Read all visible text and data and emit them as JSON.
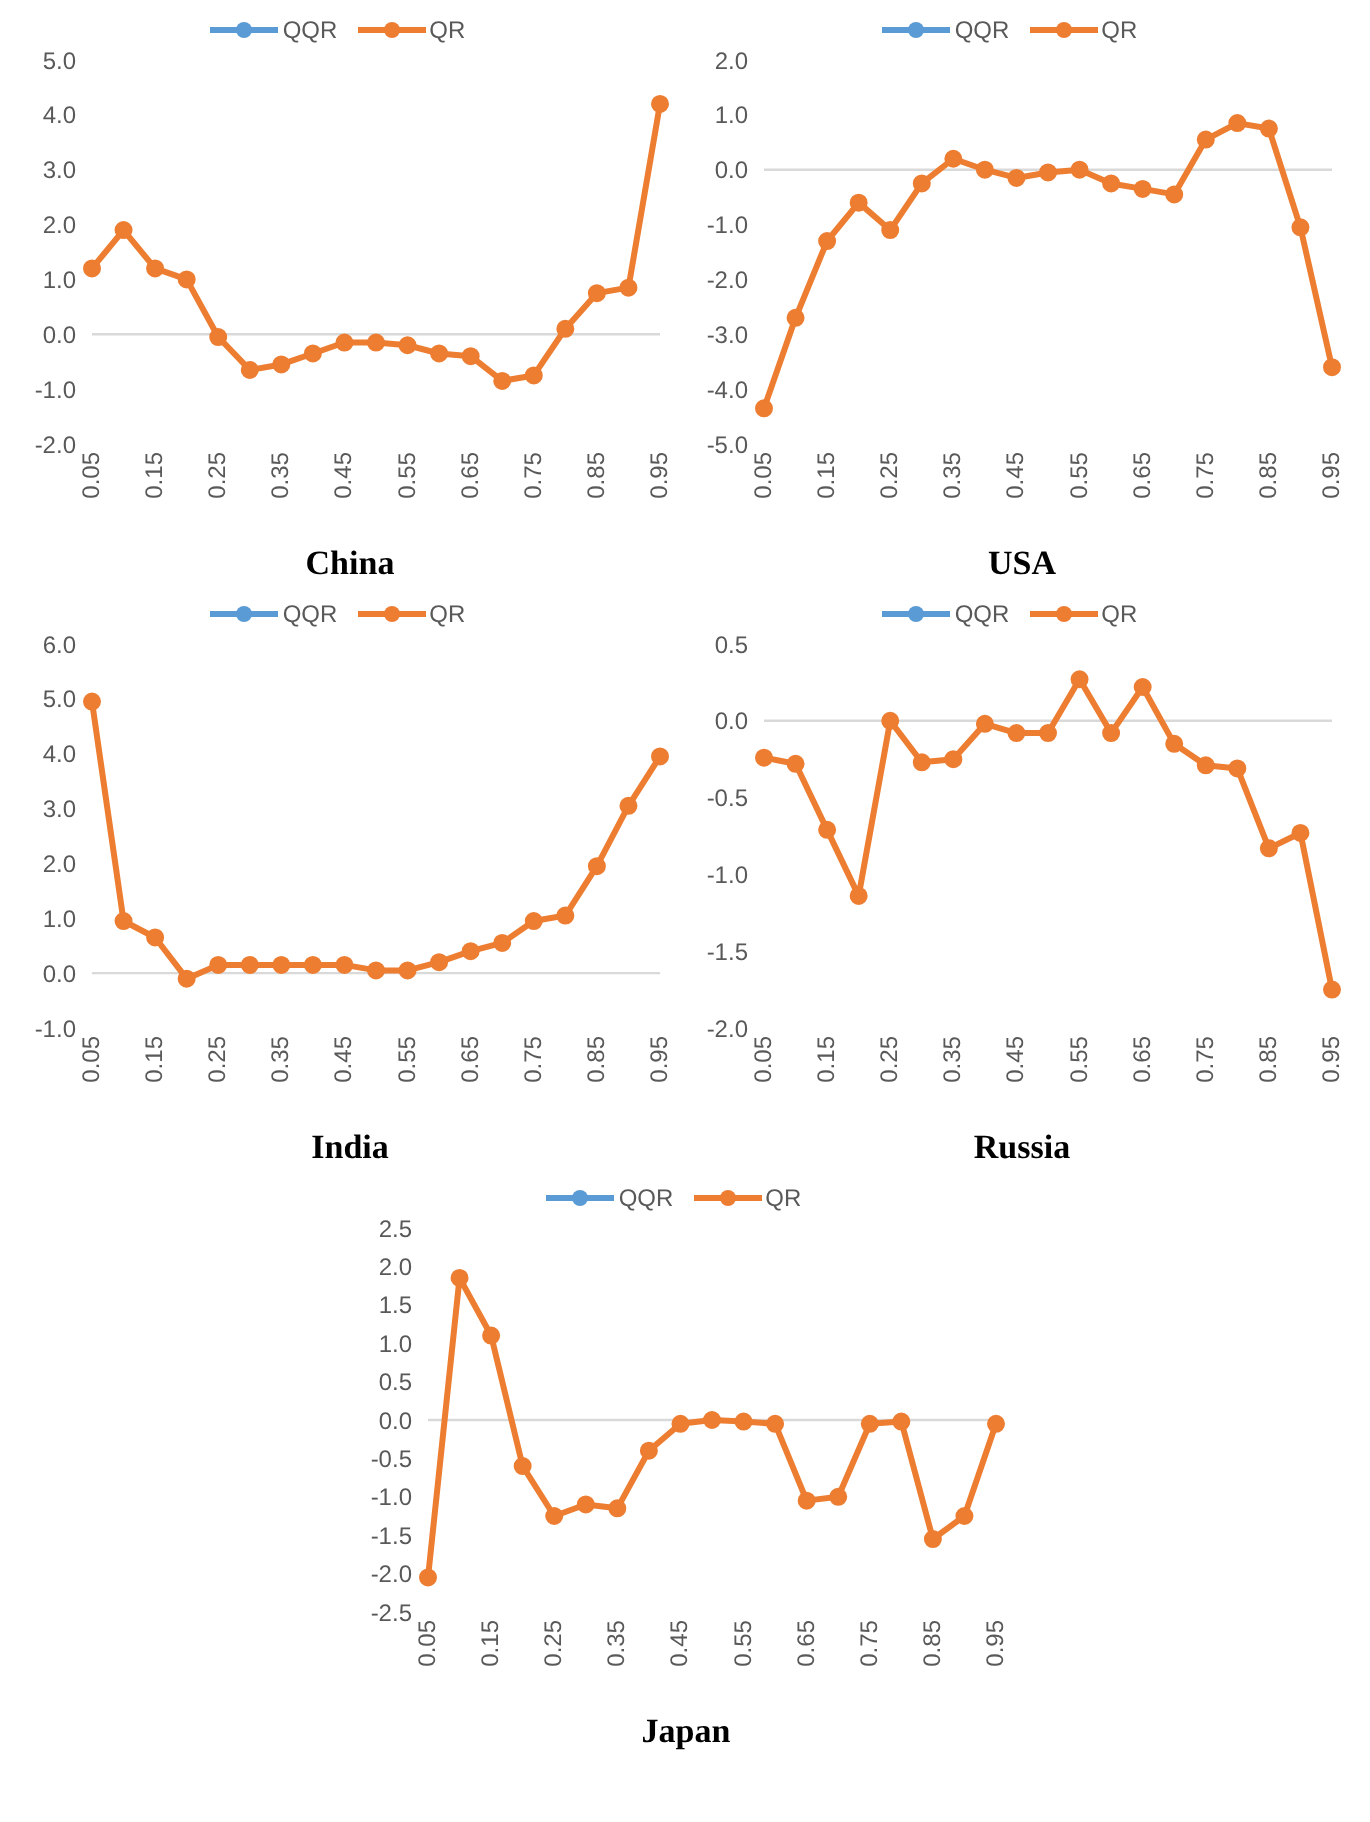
{
  "chart_data": [
    {
      "type": "line",
      "title": "China",
      "categories": [
        "0.05",
        null,
        "0.15",
        null,
        "0.25",
        null,
        "0.35",
        null,
        "0.45",
        null,
        "0.55",
        null,
        "0.65",
        null,
        "0.75",
        null,
        "0.85",
        null,
        "0.95"
      ],
      "series": [
        {
          "name": "QQR",
          "color": "#5b9bd5",
          "values": [
            null,
            null,
            null,
            null,
            null,
            null,
            null,
            null,
            null,
            null,
            null,
            null,
            null,
            null,
            null,
            null,
            null,
            null,
            null
          ]
        },
        {
          "name": "QR",
          "color": "#ed7d31",
          "values": [
            1.2,
            1.9,
            1.2,
            1.0,
            -0.05,
            -0.65,
            -0.55,
            -0.35,
            -0.15,
            -0.15,
            -0.2,
            -0.35,
            -0.4,
            -0.85,
            -0.75,
            0.1,
            0.75,
            0.85,
            4.2
          ]
        }
      ],
      "ylim": [
        -2,
        5
      ],
      "yticks": [
        {
          "value": -2,
          "label": "-2.0"
        },
        {
          "value": -1,
          "label": "-1.0"
        },
        {
          "value": 0,
          "label": "0.0"
        },
        {
          "value": 1,
          "label": "1.0"
        },
        {
          "value": 2,
          "label": "2.0"
        },
        {
          "value": 3,
          "label": "3.0"
        },
        {
          "value": 4,
          "label": "4.0"
        },
        {
          "value": 5,
          "label": "5.0"
        }
      ],
      "ref_lines": [
        {
          "axis": "y",
          "value": 0,
          "color": "#d9d9d9"
        }
      ],
      "grid": false,
      "legend": "top",
      "marker": "circle",
      "line_style": "solid"
    },
    {
      "type": "line",
      "title": "USA",
      "categories": [
        "0.05",
        null,
        "0.15",
        null,
        "0.25",
        null,
        "0.35",
        null,
        "0.45",
        null,
        "0.55",
        null,
        "0.65",
        null,
        "0.75",
        null,
        "0.85",
        null,
        "0.95"
      ],
      "series": [
        {
          "name": "QQR",
          "color": "#5b9bd5",
          "values": [
            null,
            null,
            null,
            null,
            null,
            null,
            null,
            null,
            null,
            null,
            null,
            null,
            null,
            null,
            null,
            null,
            null,
            null,
            null
          ]
        },
        {
          "name": "QR",
          "color": "#ed7d31",
          "values": [
            -4.35,
            -2.7,
            -1.3,
            -0.6,
            -1.1,
            -0.25,
            0.2,
            0.0,
            -0.15,
            -0.05,
            0.0,
            -0.25,
            -0.35,
            -0.45,
            0.55,
            0.85,
            0.75,
            -1.05,
            -3.6
          ]
        }
      ],
      "ylim": [
        -5,
        2
      ],
      "yticks": [
        {
          "value": -5,
          "label": "-5.0"
        },
        {
          "value": -4,
          "label": "-4.0"
        },
        {
          "value": -3,
          "label": "-3.0"
        },
        {
          "value": -2,
          "label": "-2.0"
        },
        {
          "value": -1,
          "label": "-1.0"
        },
        {
          "value": 0,
          "label": "0.0"
        },
        {
          "value": 1,
          "label": "1.0"
        },
        {
          "value": 2,
          "label": "2.0"
        }
      ],
      "ref_lines": [
        {
          "axis": "y",
          "value": 0,
          "color": "#d9d9d9"
        }
      ],
      "grid": false,
      "legend": "top",
      "marker": "circle",
      "line_style": "solid"
    },
    {
      "type": "line",
      "title": "India",
      "categories": [
        "0.05",
        null,
        "0.15",
        null,
        "0.25",
        null,
        "0.35",
        null,
        "0.45",
        null,
        "0.55",
        null,
        "0.65",
        null,
        "0.75",
        null,
        "0.85",
        null,
        "0.95"
      ],
      "series": [
        {
          "name": "QQR",
          "color": "#5b9bd5",
          "values": [
            null,
            null,
            null,
            null,
            null,
            null,
            null,
            null,
            null,
            null,
            null,
            null,
            null,
            null,
            null,
            null,
            null,
            null,
            null
          ]
        },
        {
          "name": "QR",
          "color": "#ed7d31",
          "values": [
            4.95,
            0.95,
            0.65,
            -0.1,
            0.15,
            0.15,
            0.15,
            0.15,
            0.15,
            0.05,
            0.05,
            0.2,
            0.4,
            0.55,
            0.95,
            1.05,
            1.95,
            3.05,
            3.95
          ]
        }
      ],
      "ylim": [
        -1,
        6
      ],
      "yticks": [
        {
          "value": -1,
          "label": "-1.0"
        },
        {
          "value": 0,
          "label": "0.0"
        },
        {
          "value": 1,
          "label": "1.0"
        },
        {
          "value": 2,
          "label": "2.0"
        },
        {
          "value": 3,
          "label": "3.0"
        },
        {
          "value": 4,
          "label": "4.0"
        },
        {
          "value": 5,
          "label": "5.0"
        },
        {
          "value": 6,
          "label": "6.0"
        }
      ],
      "ref_lines": [
        {
          "axis": "y",
          "value": 0,
          "color": "#d9d9d9"
        }
      ],
      "grid": false,
      "legend": "top",
      "marker": "circle",
      "line_style": "solid"
    },
    {
      "type": "line",
      "title": "Russia",
      "categories": [
        "0.05",
        null,
        "0.15",
        null,
        "0.25",
        null,
        "0.35",
        null,
        "0.45",
        null,
        "0.55",
        null,
        "0.65",
        null,
        "0.75",
        null,
        "0.85",
        null,
        "0.95"
      ],
      "series": [
        {
          "name": "QQR",
          "color": "#5b9bd5",
          "values": [
            null,
            null,
            null,
            null,
            null,
            null,
            null,
            null,
            null,
            null,
            null,
            null,
            null,
            null,
            null,
            null,
            null,
            null,
            null
          ]
        },
        {
          "name": "QR",
          "color": "#ed7d31",
          "values": [
            -0.24,
            -0.28,
            -0.71,
            -1.14,
            0.0,
            -0.27,
            -0.25,
            -0.02,
            -0.08,
            -0.08,
            0.27,
            -0.08,
            0.22,
            -0.15,
            -0.29,
            -0.31,
            -0.83,
            -0.73,
            -1.75
          ]
        }
      ],
      "ylim": [
        -2,
        0.5
      ],
      "yticks": [
        {
          "value": -2,
          "label": "-2.0"
        },
        {
          "value": -1.5,
          "label": "-1.5"
        },
        {
          "value": -1,
          "label": "-1.0"
        },
        {
          "value": -0.5,
          "label": "-0.5"
        },
        {
          "value": 0,
          "label": "0.0"
        },
        {
          "value": 0.5,
          "label": "0.5"
        }
      ],
      "ref_lines": [
        {
          "axis": "y",
          "value": 0,
          "color": "#d9d9d9"
        }
      ],
      "grid": false,
      "legend": "top",
      "marker": "circle",
      "line_style": "solid"
    },
    {
      "type": "line",
      "title": "Japan",
      "categories": [
        "0.05",
        null,
        "0.15",
        null,
        "0.25",
        null,
        "0.35",
        null,
        "0.45",
        null,
        "0.55",
        null,
        "0.65",
        null,
        "0.75",
        null,
        "0.85",
        null,
        "0.95"
      ],
      "series": [
        {
          "name": "QQR",
          "color": "#5b9bd5",
          "values": [
            null,
            null,
            null,
            null,
            null,
            null,
            null,
            null,
            null,
            null,
            null,
            null,
            null,
            null,
            null,
            null,
            null,
            null,
            null
          ]
        },
        {
          "name": "QR",
          "color": "#ed7d31",
          "values": [
            -2.05,
            1.85,
            1.1,
            -0.6,
            -1.25,
            -1.1,
            -1.15,
            -0.4,
            -0.05,
            0.0,
            -0.02,
            -0.05,
            -1.05,
            -1.0,
            -0.05,
            -0.02,
            -1.55,
            -1.25,
            -0.05
          ]
        }
      ],
      "ylim": [
        -2.5,
        2.5
      ],
      "yticks": [
        {
          "value": -2.5,
          "label": "-2.5"
        },
        {
          "value": -2,
          "label": "-2.0"
        },
        {
          "value": -1.5,
          "label": "-1.5"
        },
        {
          "value": -1,
          "label": "-1.0"
        },
        {
          "value": -0.5,
          "label": "-0.5"
        },
        {
          "value": 0,
          "label": "0.0"
        },
        {
          "value": 0.5,
          "label": "0.5"
        },
        {
          "value": 1,
          "label": "1.0"
        },
        {
          "value": 1.5,
          "label": "1.5"
        },
        {
          "value": 2,
          "label": "2.0"
        },
        {
          "value": 2.5,
          "label": "2.5"
        }
      ],
      "ref_lines": [
        {
          "axis": "y",
          "value": 0,
          "color": "#d9d9d9"
        }
      ],
      "grid": false,
      "legend": "top",
      "marker": "circle",
      "line_style": "solid"
    }
  ]
}
